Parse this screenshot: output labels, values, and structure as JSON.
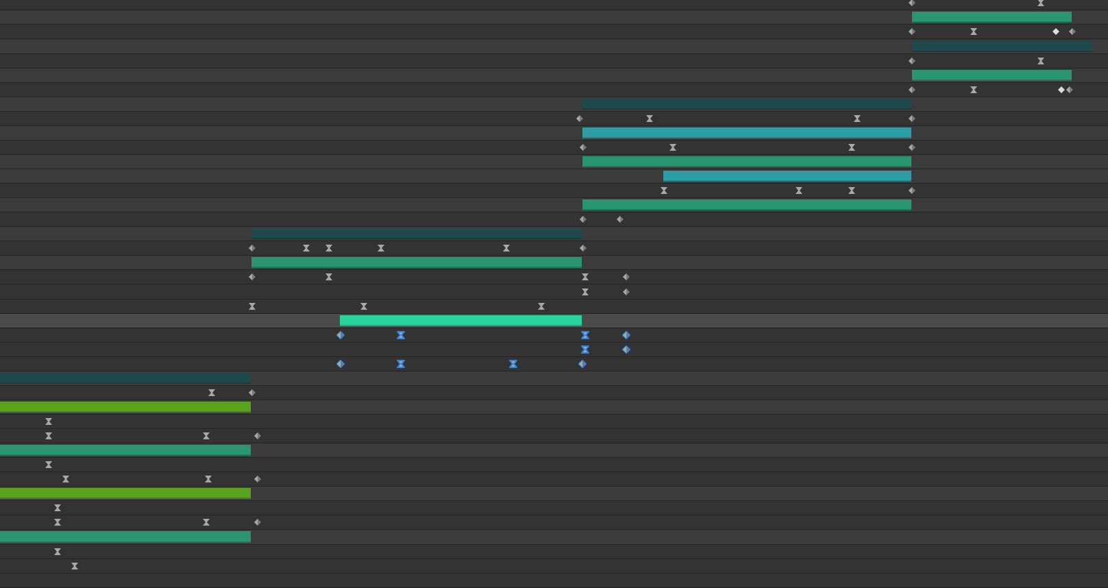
{
  "colors": {
    "layer_row": "#3b3b3b",
    "property_row": "#333333",
    "selected_row": "#4a4a4a",
    "bar_green": "#2a9570",
    "bar_dark_teal": "#1e4a4e",
    "bar_teal": "#2f9ca3",
    "bar_lime": "#5ba31f",
    "bar_selected": "#2ad39d",
    "keyframe": "#a8a8a8",
    "keyframe_selected_outline": "#2f86e0"
  },
  "icons": {
    "linear_keyframe": "diamond-keyframe-icon",
    "hold_keyframe": "hold-diamond-icon",
    "easy_ease_keyframe": "hourglass-keyframe-icon"
  },
  "selected_layer": "layer-bar-selected"
}
